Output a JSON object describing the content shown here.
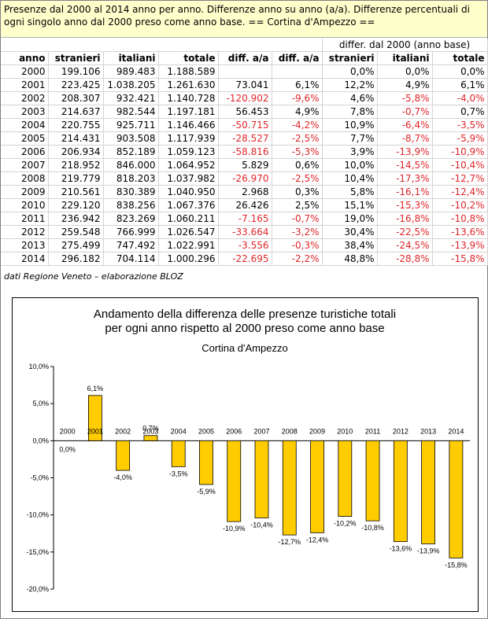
{
  "header": {
    "text": "Presenze dal 2000 al 2014 anno per anno. Differenze anno su anno (a/a). Differenze percentuali di ogni singolo anno dal 2000 preso come anno base. == Cortina d'Ampezzo =="
  },
  "table": {
    "group_header": "differ. dal 2000 (anno base)",
    "columns": [
      "anno",
      "stranieri",
      "italiani",
      "totale",
      "diff. a/a",
      "diff. a/a",
      "stranieri",
      "italiani",
      "totale"
    ],
    "rows": [
      [
        "2000",
        "199.106",
        "989.483",
        "1.188.589",
        "",
        "",
        "0,0%",
        "0,0%",
        "0,0%"
      ],
      [
        "2001",
        "223.425",
        "1.038.205",
        "1.261.630",
        "73.041",
        "6,1%",
        "12,2%",
        "4,9%",
        "6,1%"
      ],
      [
        "2002",
        "208.307",
        "932.421",
        "1.140.728",
        "-120.902",
        "-9,6%",
        "4,6%",
        "-5,8%",
        "-4,0%"
      ],
      [
        "2003",
        "214.637",
        "982.544",
        "1.197.181",
        "56.453",
        "4,9%",
        "7,8%",
        "-0,7%",
        "0,7%"
      ],
      [
        "2004",
        "220.755",
        "925.711",
        "1.146.466",
        "-50.715",
        "-4,2%",
        "10,9%",
        "-6,4%",
        "-3,5%"
      ],
      [
        "2005",
        "214.431",
        "903.508",
        "1.117.939",
        "-28.527",
        "-2,5%",
        "7,7%",
        "-8,7%",
        "-5,9%"
      ],
      [
        "2006",
        "206.934",
        "852.189",
        "1.059.123",
        "-58.816",
        "-5,3%",
        "3,9%",
        "-13,9%",
        "-10,9%"
      ],
      [
        "2007",
        "218.952",
        "846.000",
        "1.064.952",
        "5.829",
        "0,6%",
        "10,0%",
        "-14,5%",
        "-10,4%"
      ],
      [
        "2008",
        "219.779",
        "818.203",
        "1.037.982",
        "-26.970",
        "-2,5%",
        "10,4%",
        "-17,3%",
        "-12,7%"
      ],
      [
        "2009",
        "210.561",
        "830.389",
        "1.040.950",
        "2.968",
        "0,3%",
        "5,8%",
        "-16,1%",
        "-12,4%"
      ],
      [
        "2010",
        "229.120",
        "838.256",
        "1.067.376",
        "26.426",
        "2,5%",
        "15,1%",
        "-15,3%",
        "-10,2%"
      ],
      [
        "2011",
        "236.942",
        "823.269",
        "1.060.211",
        "-7.165",
        "-0,7%",
        "19,0%",
        "-16,8%",
        "-10,8%"
      ],
      [
        "2012",
        "259.548",
        "766.999",
        "1.026.547",
        "-33.664",
        "-3,2%",
        "30,4%",
        "-22,5%",
        "-13,6%"
      ],
      [
        "2013",
        "275.499",
        "747.492",
        "1.022.991",
        "-3.556",
        "-0,3%",
        "38,4%",
        "-24,5%",
        "-13,9%"
      ],
      [
        "2014",
        "296.182",
        "704.114",
        "1.000.296",
        "-22.695",
        "-2,2%",
        "48,8%",
        "-28,8%",
        "-15,8%"
      ]
    ],
    "negative_color": "#e0262a"
  },
  "note": "dati Regione Veneto – elaborazione BLOZ",
  "chart_data": {
    "type": "bar",
    "title": "Andamento della differenza delle presenze turistiche totali per ogni anno rispetto al 2000 preso come anno base",
    "title_lines": [
      "Andamento della differenza delle presenze turistiche totali",
      "per ogni anno rispetto al 2000 preso come anno base"
    ],
    "subtitle": "Cortina d'Ampezzo",
    "categories": [
      "2000",
      "2001",
      "2002",
      "2003",
      "2004",
      "2005",
      "2006",
      "2007",
      "2008",
      "2009",
      "2010",
      "2011",
      "2012",
      "2013",
      "2014"
    ],
    "values": [
      0.0,
      6.1,
      -4.0,
      0.7,
      -3.5,
      -5.9,
      -10.9,
      -10.4,
      -12.7,
      -12.4,
      -10.2,
      -10.8,
      -13.6,
      -13.9,
      -15.8
    ],
    "data_labels": [
      "0,0%",
      "6,1%",
      "-4,0%",
      "0,7%",
      "-3,5%",
      "-5,9%",
      "-10,9%",
      "-10,4%",
      "-12,7%",
      "-12,4%",
      "-10,2%",
      "-10,8%",
      "-13,6%",
      "-13,9%",
      "-15,8%"
    ],
    "yticks": [
      10,
      5,
      0,
      -5,
      -10,
      -15,
      -20
    ],
    "ytick_labels": [
      "10,0%",
      "5,0%",
      "0,0%",
      "-5,0%",
      "-10,0%",
      "-15,0%",
      "-20,0%"
    ],
    "ylim": [
      -20,
      10
    ],
    "xlabel": "",
    "ylabel": "",
    "grid": false,
    "bar_color": "#ffcc00",
    "bar_stroke": "#000000"
  }
}
